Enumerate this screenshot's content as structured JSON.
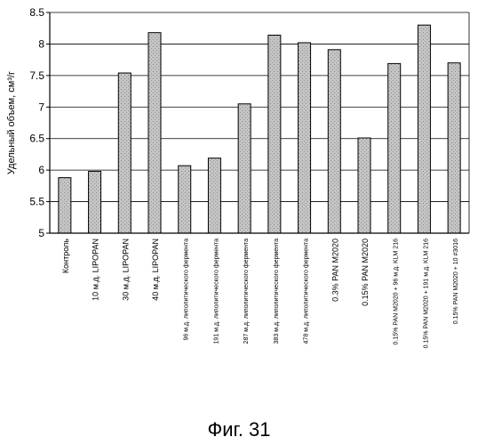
{
  "chart_data": {
    "type": "bar",
    "ylabel": "Удельный объем, см³/г",
    "xlabel": "",
    "ylim": [
      5,
      8.5
    ],
    "ytick_step": 0.5,
    "yticks": [
      "5",
      "5.5",
      "6",
      "6.5",
      "7",
      "7.5",
      "8",
      "8.5"
    ],
    "grid": "horizontal",
    "categories": [
      "Контроль",
      "10 м.д. LIPOPAN",
      "30 м.д. LIPOPAN",
      "40 м.д. LIPOPAN",
      "96 м.д. липолитического фермента",
      "191 м.д. липолитического фермента",
      "287 м.д. липолитического фермента",
      "383 м.д. липолитического фермента",
      "478 м.д. липолитического фермента",
      "0.3% PAN M2020",
      "0.15% PAN M2020",
      "0.15% PAN M2020 + 96 м.д. KLM 216",
      "0.15% PAN M2020 + 191 м.д. KLM 216",
      "0.15% PAN M2020 + 10 #3016"
    ],
    "values": [
      5.88,
      5.98,
      7.54,
      8.18,
      6.07,
      6.19,
      7.05,
      8.14,
      8.02,
      7.91,
      6.51,
      7.69,
      8.3,
      7.7
    ],
    "bar_color": "#c4c4c4"
  },
  "caption": "Фиг. 31"
}
